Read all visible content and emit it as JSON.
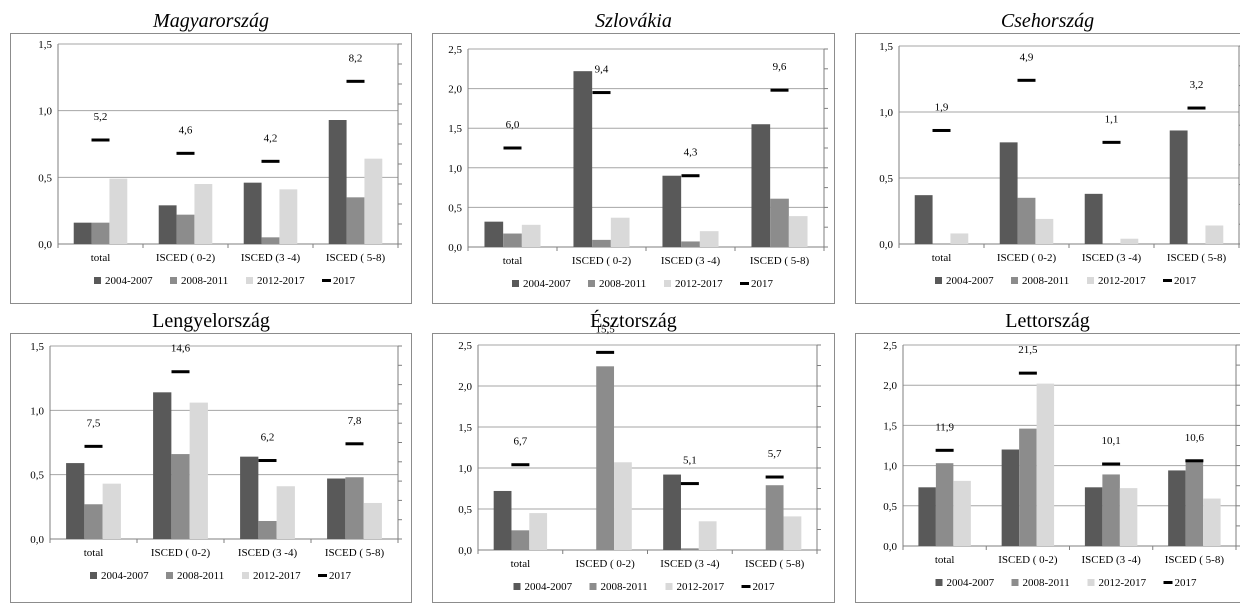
{
  "legend_labels": [
    "2004-2007",
    "2008-2011",
    "2012-2017",
    "2017"
  ],
  "colors": {
    "series": [
      "#595959",
      "#8c8c8c",
      "#d9d9d9"
    ],
    "marker": "#000000",
    "grid": "#a6a6a6",
    "frame": "#8c8c8c"
  },
  "chart_data": [
    {
      "type": "bar",
      "title": "Magyarország",
      "categories": [
        "total",
        "ISCED ( 0-2)",
        "ISCED (3 -4)",
        "ISCED ( 5-8)"
      ],
      "ylim": [
        0,
        1.5
      ],
      "yticks": [
        "0,0",
        "0,5",
        "1,0",
        "1,5"
      ],
      "series": [
        {
          "name": "2004-2007",
          "values": [
            0.16,
            0.29,
            0.46,
            0.93
          ]
        },
        {
          "name": "2008-2011",
          "values": [
            0.16,
            0.22,
            0.05,
            0.35
          ]
        },
        {
          "name": "2012-2017",
          "values": [
            0.49,
            0.45,
            0.41,
            0.64
          ]
        }
      ],
      "markers": {
        "name": "2017",
        "values": [
          0.78,
          0.68,
          0.62,
          1.22
        ]
      },
      "marker_labels": [
        "5,2",
        "4,6",
        "4,2",
        "8,2"
      ],
      "grid": true,
      "legend": "bottom"
    },
    {
      "type": "bar",
      "title": "Szlovákia",
      "categories": [
        "total",
        "ISCED ( 0-2)",
        "ISCED (3 -4)",
        "ISCED ( 5-8)"
      ],
      "ylim": [
        0,
        2.5
      ],
      "yticks": [
        "0,0",
        "0,5",
        "1,0",
        "1,5",
        "2,0",
        "2,5"
      ],
      "series": [
        {
          "name": "2004-2007",
          "values": [
            0.32,
            2.22,
            0.9,
            1.55
          ]
        },
        {
          "name": "2008-2011",
          "values": [
            0.17,
            0.09,
            0.07,
            0.61
          ]
        },
        {
          "name": "2012-2017",
          "values": [
            0.28,
            0.37,
            0.2,
            0.39
          ]
        }
      ],
      "markers": {
        "name": "2017",
        "values": [
          1.25,
          1.95,
          0.9,
          1.98
        ]
      },
      "marker_labels": [
        "6,0",
        "9,4",
        "4,3",
        "9,6"
      ],
      "grid": true,
      "legend": "bottom"
    },
    {
      "type": "bar",
      "title": "Csehország",
      "categories": [
        "total",
        "ISCED ( 0-2)",
        "ISCED (3 -4)",
        "ISCED ( 5-8)"
      ],
      "ylim": [
        0,
        1.5
      ],
      "yticks": [
        "0,0",
        "0,5",
        "1,0",
        "1,5"
      ],
      "series": [
        {
          "name": "2004-2007",
          "values": [
            0.37,
            0.77,
            0.38,
            0.86
          ]
        },
        {
          "name": "2008-2011",
          "values": [
            0.0,
            0.35,
            0.0,
            0.0
          ]
        },
        {
          "name": "2012-2017",
          "values": [
            0.08,
            0.19,
            0.04,
            0.14
          ]
        }
      ],
      "markers": {
        "name": "2017",
        "values": [
          0.86,
          1.24,
          0.77,
          1.03
        ]
      },
      "marker_labels": [
        "1,9",
        "4,9",
        "1,1",
        "3,2"
      ],
      "grid": true,
      "legend": "bottom"
    },
    {
      "type": "bar",
      "title": "Lengyelország",
      "categories": [
        "total",
        "ISCED ( 0-2)",
        "ISCED (3 -4)",
        "ISCED ( 5-8)"
      ],
      "ylim": [
        0,
        1.5
      ],
      "yticks": [
        "0,0",
        "0,5",
        "1,0",
        "1,5"
      ],
      "series": [
        {
          "name": "2004-2007",
          "values": [
            0.59,
            1.14,
            0.64,
            0.47
          ]
        },
        {
          "name": "2008-2011",
          "values": [
            0.27,
            0.66,
            0.14,
            0.48
          ]
        },
        {
          "name": "2012-2017",
          "values": [
            0.43,
            1.06,
            0.41,
            0.28
          ]
        }
      ],
      "markers": {
        "name": "2017",
        "values": [
          0.72,
          1.3,
          0.61,
          0.74
        ]
      },
      "marker_labels": [
        "7,5",
        "14,6",
        "6,2",
        "7,8"
      ],
      "grid": true,
      "legend": "bottom"
    },
    {
      "type": "bar",
      "title": "Észtország",
      "categories": [
        "total",
        "ISCED ( 0-2)",
        "ISCED (3 -4)",
        "ISCED ( 5-8)"
      ],
      "ylim": [
        0,
        2.5
      ],
      "yticks": [
        "0,0",
        "0,5",
        "1,0",
        "1,5",
        "2,0",
        "2,5"
      ],
      "series": [
        {
          "name": "2004-2007",
          "values": [
            0.72,
            0.0,
            0.92,
            0.0
          ]
        },
        {
          "name": "2008-2011",
          "values": [
            0.24,
            2.24,
            0.02,
            0.79
          ]
        },
        {
          "name": "2012-2017",
          "values": [
            0.45,
            1.07,
            0.35,
            0.41
          ]
        }
      ],
      "markers": {
        "name": "2017",
        "values": [
          1.04,
          2.41,
          0.81,
          0.89
        ]
      },
      "marker_labels": [
        "6,7",
        "15,5",
        "5,1",
        "5,7"
      ],
      "grid": true,
      "legend": "bottom"
    },
    {
      "type": "bar",
      "title": "Lettország",
      "categories": [
        "total",
        "ISCED ( 0-2)",
        "ISCED (3 -4)",
        "ISCED ( 5-8)"
      ],
      "ylim": [
        0,
        2.5
      ],
      "yticks": [
        "0,0",
        "0,5",
        "1,0",
        "1,5",
        "2,0",
        "2,5"
      ],
      "series": [
        {
          "name": "2004-2007",
          "values": [
            0.73,
            1.2,
            0.73,
            0.94
          ]
        },
        {
          "name": "2008-2011",
          "values": [
            1.03,
            1.46,
            0.89,
            1.05
          ]
        },
        {
          "name": "2012-2017",
          "values": [
            0.81,
            2.02,
            0.72,
            0.59
          ]
        }
      ],
      "markers": {
        "name": "2017",
        "values": [
          1.19,
          2.15,
          1.02,
          1.06
        ]
      },
      "marker_labels": [
        "11,9",
        "21,5",
        "10,1",
        "10,6"
      ],
      "grid": true,
      "legend": "bottom"
    }
  ]
}
